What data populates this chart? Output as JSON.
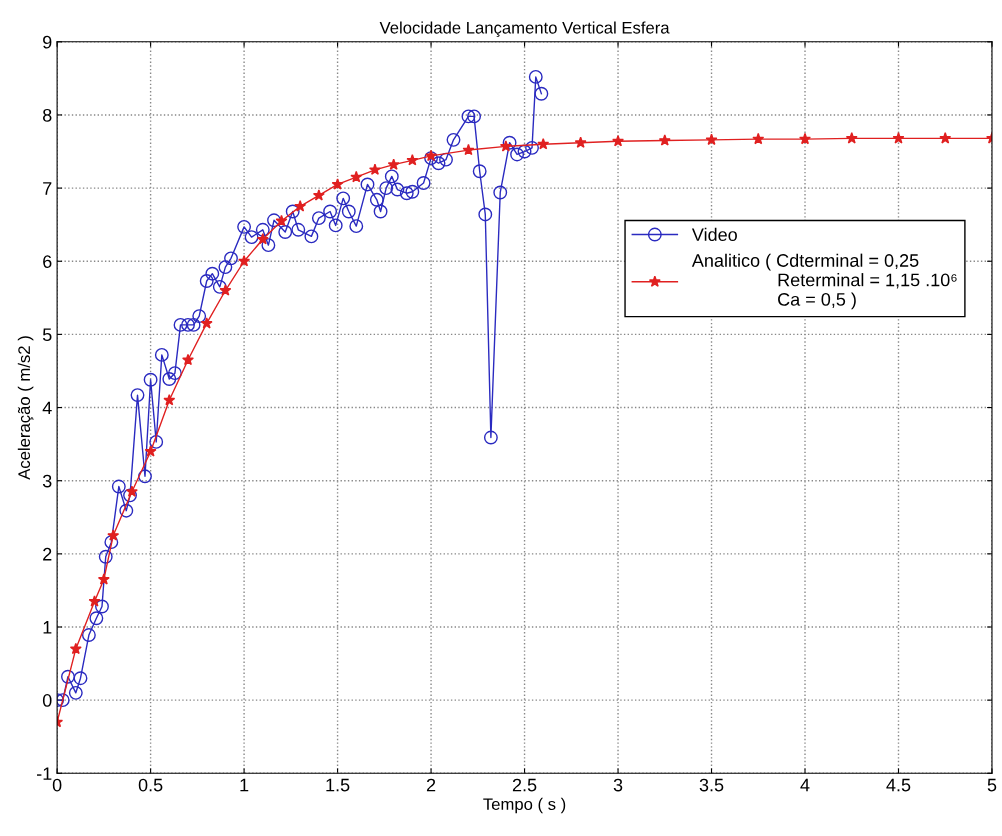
{
  "chart_data": {
    "type": "line",
    "title": "Velocidade Lançamento Vertical Esfera",
    "xlabel": "Tempo ( s )",
    "ylabel": "Aceleração ( m/s2 )",
    "xlim": [
      0,
      5
    ],
    "xticks": [
      0,
      0.5,
      1,
      1.5,
      2,
      2.5,
      3,
      3.5,
      4,
      4.5,
      5
    ],
    "ylim": [
      -1,
      9
    ],
    "yticks": [
      -1,
      0,
      1,
      2,
      3,
      4,
      5,
      6,
      7,
      8,
      9
    ],
    "grid": true,
    "legend": "right",
    "line_style": "solid",
    "series": [
      {
        "name": "Video",
        "color": "#2a2ac0",
        "marker": "circle",
        "x": [
          0.0,
          0.03,
          0.058,
          0.1,
          0.125,
          0.17,
          0.21,
          0.24,
          0.26,
          0.29,
          0.33,
          0.37,
          0.39,
          0.43,
          0.47,
          0.5,
          0.53,
          0.56,
          0.6,
          0.63,
          0.66,
          0.7,
          0.73,
          0.76,
          0.8,
          0.83,
          0.87,
          0.9,
          0.93,
          1.0,
          1.04,
          1.1,
          1.13,
          1.16,
          1.22,
          1.26,
          1.29,
          1.36,
          1.4,
          1.46,
          1.49,
          1.53,
          1.56,
          1.6,
          1.66,
          1.71,
          1.73,
          1.76,
          1.79,
          1.82,
          1.87,
          1.9,
          1.96,
          2.0,
          2.04,
          2.08,
          2.12,
          2.2,
          2.23,
          2.26,
          2.29,
          2.32,
          2.37,
          2.42,
          2.46,
          2.5,
          2.54,
          2.56,
          2.59
        ],
        "values": [
          0.0,
          0.0,
          0.32,
          0.1,
          0.3,
          0.89,
          1.12,
          1.28,
          1.96,
          2.16,
          2.92,
          2.59,
          2.8,
          4.17,
          3.06,
          4.38,
          3.53,
          4.72,
          4.39,
          4.47,
          5.13,
          5.13,
          5.13,
          5.25,
          5.73,
          5.83,
          5.65,
          5.92,
          6.04,
          6.47,
          6.33,
          6.43,
          6.22,
          6.56,
          6.4,
          6.68,
          6.43,
          6.34,
          6.59,
          6.68,
          6.49,
          6.86,
          6.68,
          6.48,
          7.05,
          6.84,
          6.68,
          7.0,
          7.16,
          6.98,
          6.93,
          6.95,
          7.07,
          7.41,
          7.34,
          7.39,
          7.66,
          7.98,
          7.98,
          7.23,
          6.64,
          3.59,
          6.94,
          7.62,
          7.46,
          7.5,
          7.55,
          8.52,
          8.29
        ]
      },
      {
        "name": "Analitico ( Cdterminal = 0,25\n                 Reterminal = 1,15 .10⁶\n                 Ca = 0,5 )",
        "color": "#e02020",
        "marker": "star",
        "x": [
          0,
          0.1,
          0.2,
          0.25,
          0.3,
          0.4,
          0.5,
          0.6,
          0.7,
          0.8,
          0.9,
          1.0,
          1.1,
          1.2,
          1.3,
          1.4,
          1.5,
          1.6,
          1.7,
          1.8,
          1.9,
          2.0,
          2.2,
          2.4,
          2.6,
          2.8,
          3.0,
          3.25,
          3.5,
          3.75,
          4.0,
          4.25,
          4.5,
          4.75,
          5.0
        ],
        "values": [
          -0.3,
          0.7,
          1.35,
          1.65,
          2.25,
          2.85,
          3.4,
          4.1,
          4.65,
          5.15,
          5.6,
          6.0,
          6.3,
          6.55,
          6.75,
          6.9,
          7.05,
          7.15,
          7.25,
          7.32,
          7.38,
          7.44,
          7.52,
          7.57,
          7.6,
          7.62,
          7.64,
          7.65,
          7.66,
          7.67,
          7.67,
          7.68,
          7.68,
          7.68,
          7.68
        ]
      }
    ]
  }
}
